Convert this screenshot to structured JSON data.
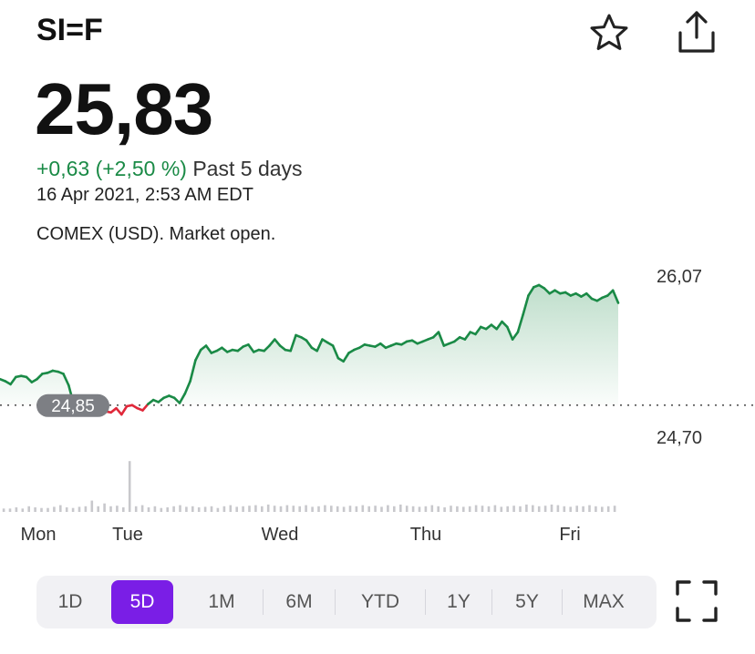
{
  "header": {
    "ticker": "SI=F",
    "favorite_icon": "star-outline-icon",
    "share_icon": "share-icon"
  },
  "quote": {
    "price": "25,83",
    "change": "+0,63 (+2,50 %)",
    "period": "Past 5 days",
    "timestamp": "16 Apr 2021, 2:53 AM EDT",
    "exchange": "COMEX (USD). Market open."
  },
  "chart_data": {
    "type": "line",
    "x_labels": [
      "Mon",
      "Tue",
      "Wed",
      "Thu",
      "Fri"
    ],
    "y_labels": [
      "26,07",
      "24,70"
    ],
    "reference_label": "24,85",
    "reference_value": 24.85,
    "ylim": [
      24.7,
      26.07
    ],
    "colors": {
      "up": "#1a8a46",
      "down": "#e0283a",
      "fill": "#1a8a46",
      "reference_pill": "#7d7f84"
    },
    "series": [
      {
        "values": [
          25.1,
          25.08,
          25.05,
          25.12,
          25.13,
          25.12,
          25.07,
          25.1,
          25.15,
          25.16,
          25.18,
          25.17,
          25.15,
          25.04,
          24.85,
          24.84,
          24.83,
          24.82,
          24.84,
          24.82,
          24.79,
          24.78,
          24.82,
          24.76,
          24.84,
          24.85,
          24.82,
          24.8,
          24.86,
          24.9,
          24.88,
          24.92,
          24.94,
          24.92,
          24.87,
          24.96,
          25.08,
          25.28,
          25.38,
          25.42,
          25.35,
          25.37,
          25.4,
          25.36,
          25.38,
          25.37,
          25.41,
          25.43,
          25.36,
          25.38,
          25.37,
          25.42,
          25.48,
          25.42,
          25.38,
          25.37,
          25.52,
          25.5,
          25.47,
          25.4,
          25.37,
          25.48,
          25.45,
          25.42,
          25.3,
          25.27,
          25.35,
          25.38,
          25.4,
          25.43,
          25.42,
          25.41,
          25.44,
          25.4,
          25.42,
          25.44,
          25.43,
          25.46,
          25.47,
          25.44,
          25.46,
          25.48,
          25.5,
          25.55,
          25.42,
          25.44,
          25.46,
          25.5,
          25.48,
          25.55,
          25.53,
          25.6,
          25.58,
          25.62,
          25.58,
          25.65,
          25.6,
          25.48,
          25.55,
          25.72,
          25.9,
          25.98,
          26.0,
          25.97,
          25.92,
          25.95,
          25.92,
          25.93,
          25.9,
          25.92,
          25.89,
          25.92,
          25.87,
          25.85,
          25.88,
          25.9,
          25.95,
          25.83
        ]
      }
    ],
    "volume": [
      0.06,
      0.06,
      0.08,
      0.06,
      0.1,
      0.08,
      0.07,
      0.07,
      0.09,
      0.12,
      0.08,
      0.07,
      0.09,
      0.1,
      0.2,
      0.1,
      0.15,
      0.1,
      0.11,
      0.08,
      0.9,
      0.1,
      0.12,
      0.08,
      0.1,
      0.07,
      0.08,
      0.1,
      0.12,
      0.09,
      0.1,
      0.08,
      0.09,
      0.1,
      0.07,
      0.1,
      0.12,
      0.09,
      0.1,
      0.11,
      0.12,
      0.1,
      0.13,
      0.11,
      0.1,
      0.12,
      0.11,
      0.1,
      0.12,
      0.09,
      0.1,
      0.12,
      0.11,
      0.1,
      0.09,
      0.11,
      0.1,
      0.12,
      0.1,
      0.11,
      0.09,
      0.12,
      0.1,
      0.13,
      0.11,
      0.1,
      0.09,
      0.1,
      0.12,
      0.1,
      0.08,
      0.11,
      0.1,
      0.09,
      0.1,
      0.12,
      0.11,
      0.1,
      0.12,
      0.09,
      0.1,
      0.11,
      0.1,
      0.13,
      0.12,
      0.1,
      0.11,
      0.13,
      0.12,
      0.1,
      0.09,
      0.11,
      0.1,
      0.12,
      0.1,
      0.09,
      0.1,
      0.11
    ]
  },
  "ranges": {
    "items": [
      "1D",
      "5D",
      "1M",
      "6M",
      "YTD",
      "1Y",
      "5Y",
      "MAX"
    ],
    "selected": "5D"
  },
  "fullscreen_icon": "fullscreen-icon"
}
